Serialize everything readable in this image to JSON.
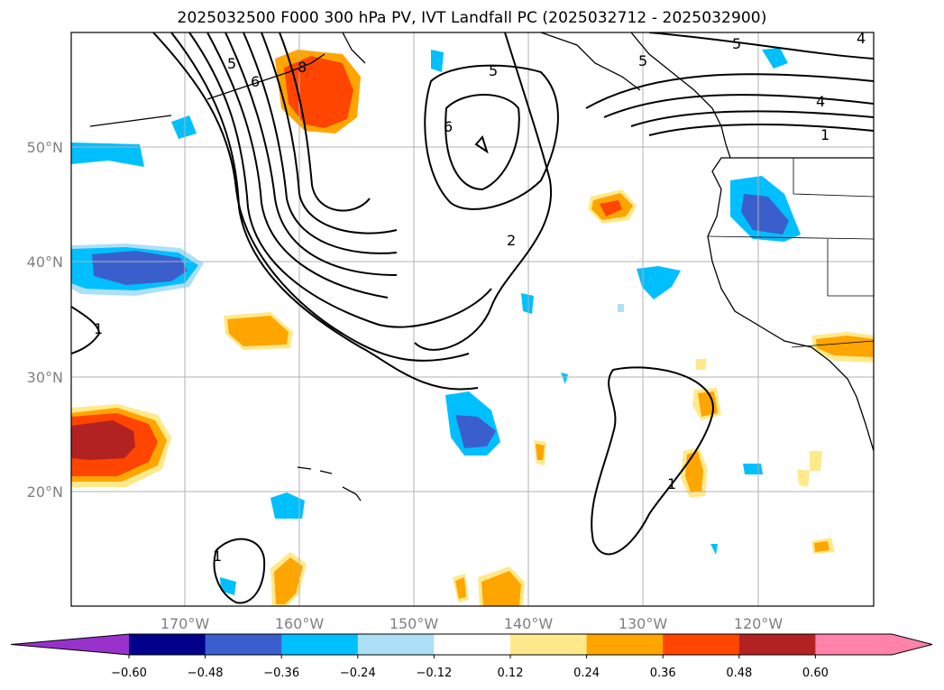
{
  "title": "2025032500 F000 300 hPa PV, IVT Landfall PC (2025032712 - 2025032900)",
  "lat_labels": [
    "50°N",
    "40°N",
    "30°N",
    "20°N"
  ],
  "lon_labels": [
    "170°W",
    "160°W",
    "150°W",
    "140°W",
    "130°W",
    "120°W"
  ],
  "colorbar": {
    "ticks": [
      "−0.60",
      "−0.48",
      "−0.36",
      "−0.24",
      "−0.12",
      "0.12",
      "0.24",
      "0.36",
      "0.48",
      "0.60"
    ],
    "colors": [
      "#9932CC",
      "#00008B",
      "#3A5FCD",
      "#00BFFF",
      "#ADE0F7",
      "#FFFFFF",
      "#FFE98A",
      "#FFA500",
      "#FF4500",
      "#B22222",
      "#FF82AB"
    ]
  },
  "contour_labels": [
    "5",
    "6",
    "8",
    "5",
    "6",
    "2",
    "5",
    "4",
    "1",
    "4",
    "5",
    "1",
    "1",
    "1"
  ]
}
